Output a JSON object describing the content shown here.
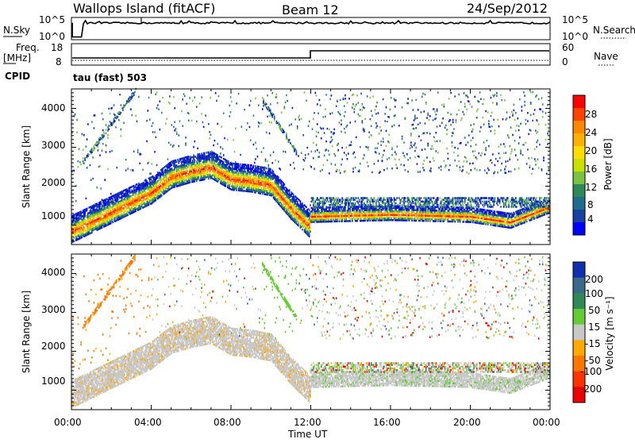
{
  "header": {
    "station": "Wallops Island (fitACF)",
    "beam": "Beam 12",
    "date": "24/Sep/2012"
  },
  "noise_panel": {
    "left_label": "N.Sky",
    "left_ticks": [
      "10^5",
      "10^0"
    ],
    "right_label": "N.Search",
    "right_ticks": [
      "10^5",
      "10^0"
    ]
  },
  "freq_panel": {
    "left_label_1": "Freq.",
    "left_label_2": "[MHz]",
    "left_ticks": [
      "18",
      "8"
    ],
    "right_label": "Nave",
    "right_ticks": [
      "60",
      "0"
    ],
    "cpid_label": "CPID",
    "cpid_value": "tau (fast) 503"
  },
  "power_panel": {
    "ylabel": "Slant Range [km]",
    "yticks": [
      "4000",
      "3000",
      "2000",
      "1000"
    ],
    "cbar_label": "Power [dB]",
    "cbar_ticks": [
      "28",
      "24",
      "20",
      "16",
      "12",
      "8",
      "4"
    ],
    "cbar_colors": [
      "#ff0000",
      "#ff4400",
      "#ff8800",
      "#ffb000",
      "#ffdd00",
      "#c8e000",
      "#7cc242",
      "#2e8b57",
      "#1e6e8e",
      "#1840a0",
      "#0000ff"
    ]
  },
  "velocity_panel": {
    "ylabel": "Slant Range [km]",
    "yticks": [
      "4000",
      "3000",
      "2000",
      "1000"
    ],
    "cbar_label": "Velocity [m s⁻¹]",
    "cbar_ticks": [
      "200",
      "100",
      "50",
      "15",
      "-15",
      "-50",
      "-100",
      "-200"
    ],
    "cbar_colors": [
      "#1030b0",
      "#3a6a8a",
      "#2e8b57",
      "#66cc33",
      "#c8c8c8",
      "#ffaa00",
      "#ff7700",
      "#ff3300",
      "#ee0000"
    ]
  },
  "xaxis": {
    "label": "Time UT",
    "ticks": [
      "00:00",
      "04:00",
      "08:00",
      "12:00",
      "16:00",
      "20:00",
      "00:00"
    ]
  },
  "chart_data": [
    {
      "type": "line",
      "title": "N.Sky / N.Search",
      "x": [
        0,
        1,
        3.5,
        3.5,
        6,
        8,
        10,
        12,
        14,
        16,
        18,
        20,
        22,
        24
      ],
      "series": [
        {
          "name": "N.Sky",
          "values": [
            0.5,
            3.8,
            3.8,
            5,
            3.9,
            3.8,
            3.8,
            3.8,
            3.8,
            3.9,
            3.8,
            3.8,
            3.9,
            3.8
          ]
        }
      ],
      "xlim": [
        0,
        24
      ],
      "ylim": [
        0,
        5
      ]
    },
    {
      "type": "line",
      "title": "Freq / Nave",
      "x": [
        0,
        12,
        12,
        24
      ],
      "series": [
        {
          "name": "Freq.",
          "values": [
            10.5,
            10.5,
            15.8,
            15.8
          ]
        },
        {
          "name": "Nave",
          "values": [
            8,
            8,
            8,
            8
          ]
        }
      ],
      "xlim": [
        0,
        24
      ],
      "ylim": [
        8,
        18
      ]
    },
    {
      "type": "heatmap",
      "title": "Power [dB]",
      "xlim": [
        0,
        24
      ],
      "ylim": [
        500,
        4500
      ],
      "dominant_ground_scatter_trace_km": [
        {
          "t": 0,
          "r": 800
        },
        {
          "t": 2,
          "r": 1300
        },
        {
          "t": 4,
          "r": 1800
        },
        {
          "t": 5,
          "r": 2200
        },
        {
          "t": 6,
          "r": 2350
        },
        {
          "t": 7,
          "r": 2450
        },
        {
          "t": 8,
          "r": 2150
        },
        {
          "t": 9,
          "r": 2100
        },
        {
          "t": 10,
          "r": 2000
        },
        {
          "t": 11,
          "r": 1400
        },
        {
          "t": 11.9,
          "r": 950
        },
        {
          "t": 12,
          "r": 1200
        },
        {
          "t": 16,
          "r": 1250
        },
        {
          "t": 20,
          "r": 1200
        },
        {
          "t": 22,
          "r": 1050
        },
        {
          "t": 24,
          "r": 1450
        }
      ]
    },
    {
      "type": "heatmap",
      "title": "Velocity [m s⁻¹]",
      "xlim": [
        0,
        24
      ],
      "ylim": [
        500,
        4500
      ]
    }
  ]
}
